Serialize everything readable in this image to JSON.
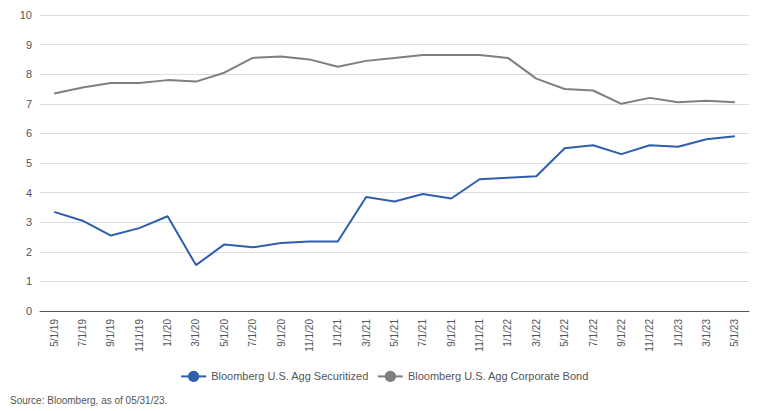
{
  "chart_data": {
    "type": "line",
    "categories": [
      "5/1/19",
      "7/1/19",
      "9/1/19",
      "11/1/19",
      "1/1/20",
      "3/1/20",
      "5/1/20",
      "7/1/20",
      "9/1/20",
      "11/1/20",
      "1/1/21",
      "3/1/21",
      "5/1/21",
      "7/1/21",
      "9/1/21",
      "11/1/21",
      "1/1/22",
      "3/1/22",
      "5/1/22",
      "7/1/22",
      "9/1/22",
      "11/1/22",
      "1/1/23",
      "3/1/23",
      "5/1/23"
    ],
    "series": [
      {
        "name": "Bloomberg U.S. Agg Securitized",
        "color": "#2E5FAC",
        "values": [
          3.35,
          3.05,
          2.55,
          2.8,
          3.2,
          1.55,
          2.25,
          2.15,
          2.3,
          2.35,
          2.35,
          3.85,
          3.7,
          3.95,
          3.8,
          4.45,
          4.5,
          4.55,
          5.5,
          5.6,
          5.3,
          5.6,
          5.55,
          5.8,
          5.9
        ]
      },
      {
        "name": "Bloomberg U.S. Agg Corporate Bond",
        "color": "#7f7f7f",
        "values": [
          7.35,
          7.55,
          7.7,
          7.7,
          7.8,
          7.75,
          8.05,
          8.55,
          8.6,
          8.5,
          8.25,
          8.45,
          8.55,
          8.65,
          8.65,
          8.65,
          8.55,
          7.85,
          7.5,
          7.45,
          7.0,
          7.2,
          7.05,
          7.1,
          7.05
        ]
      }
    ],
    "ylim": [
      0,
      10
    ],
    "yticks": [
      0,
      1,
      2,
      3,
      4,
      5,
      6,
      7,
      8,
      9,
      10
    ],
    "grid": true,
    "legend": "bottom",
    "annotations": [
      "Source: Bloomberg, as of 05/31/23."
    ]
  }
}
